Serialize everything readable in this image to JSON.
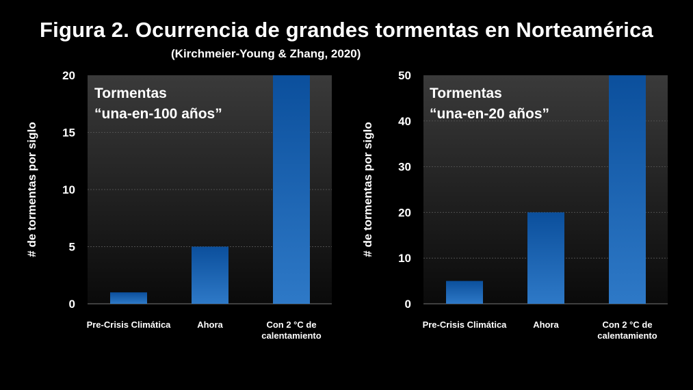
{
  "title": "Figura 2. Ocurrencia de grandes tormentas en Norteamérica",
  "subtitle": "(Kirchmeier-Young & Zhang, 2020)",
  "colors": {
    "bar_top": "#0b4f9c",
    "bar_bottom": "#2e79c7",
    "panel_top": "#3a3a3a",
    "panel_bottom": "#0a0a0a",
    "grid": "#505050"
  },
  "chart_data": [
    {
      "type": "bar",
      "annotation": [
        "Tormentas",
        "“una-en-100 años”"
      ],
      "ylabel": "# de tormentas por siglo",
      "xlabel": "",
      "categories": [
        [
          "Pre-Crisis Climática"
        ],
        [
          "Ahora"
        ],
        [
          "Con 2 °C de",
          "calentamiento"
        ]
      ],
      "values": [
        1,
        5,
        20
      ],
      "ylim": [
        0,
        20
      ],
      "yticks": [
        0,
        5,
        10,
        15,
        20
      ],
      "grid": true
    },
    {
      "type": "bar",
      "annotation": [
        "Tormentas",
        "“una-en-20 años”"
      ],
      "ylabel": "# de tormentas por siglo",
      "xlabel": "",
      "categories": [
        [
          "Pre-Crisis Climática"
        ],
        [
          "Ahora"
        ],
        [
          "Con 2 °C de",
          "calentamiento"
        ]
      ],
      "values": [
        5,
        20,
        50
      ],
      "ylim": [
        0,
        50
      ],
      "yticks": [
        0,
        10,
        20,
        30,
        40,
        50
      ],
      "grid": true
    }
  ]
}
